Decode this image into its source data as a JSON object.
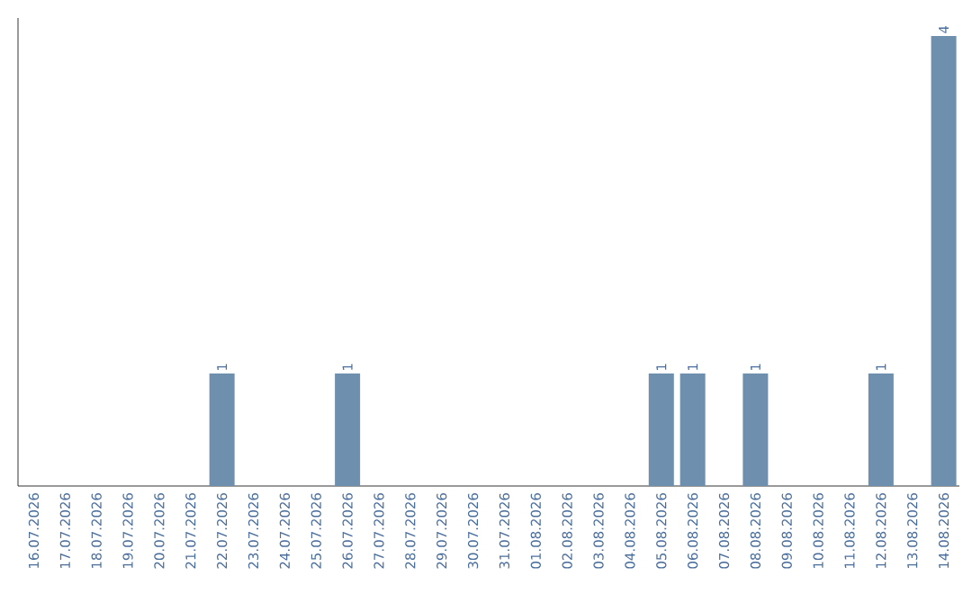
{
  "chart_data": {
    "type": "bar",
    "categories": [
      "16.07.2026",
      "17.07.2026",
      "18.07.2026",
      "19.07.2026",
      "20.07.2026",
      "21.07.2026",
      "22.07.2026",
      "23.07.2026",
      "24.07.2026",
      "25.07.2026",
      "26.07.2026",
      "27.07.2026",
      "28.07.2026",
      "29.07.2026",
      "30.07.2026",
      "31.07.2026",
      "01.08.2026",
      "02.08.2026",
      "03.08.2026",
      "04.08.2026",
      "05.08.2026",
      "06.08.2026",
      "07.08.2026",
      "08.08.2026",
      "09.08.2026",
      "10.08.2026",
      "11.08.2026",
      "12.08.2026",
      "13.08.2026",
      "14.08.2026"
    ],
    "values": [
      0,
      0,
      0,
      0,
      0,
      0,
      1,
      0,
      0,
      0,
      1,
      0,
      0,
      0,
      0,
      0,
      0,
      0,
      0,
      0,
      1,
      1,
      0,
      1,
      0,
      0,
      0,
      1,
      0,
      4
    ],
    "value_labels": [
      null,
      null,
      null,
      null,
      null,
      null,
      "1",
      null,
      null,
      null,
      "1",
      null,
      null,
      null,
      null,
      null,
      null,
      null,
      null,
      null,
      "1",
      "1",
      null,
      "1",
      null,
      null,
      null,
      "1",
      null,
      "4"
    ],
    "color": "#6f8faf",
    "ylim": [
      0,
      4.16
    ],
    "tick_labels": "x",
    "grid": false
  }
}
